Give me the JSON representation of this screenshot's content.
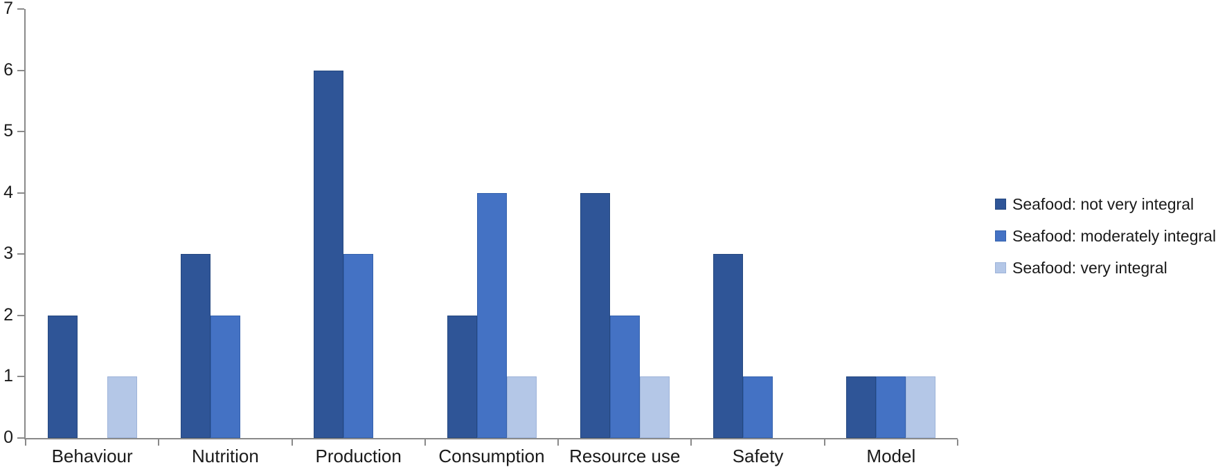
{
  "chart_data": {
    "type": "bar",
    "title": "",
    "xlabel": "",
    "ylabel": "",
    "categories": [
      "Behaviour",
      "Nutrition",
      "Production",
      "Consumption",
      "Resource use",
      "Safety",
      "Model"
    ],
    "series": [
      {
        "name": "Seafood: not very integral",
        "color": "#2F5597",
        "border_color": "#24477F",
        "values": [
          2,
          3,
          6,
          2,
          4,
          3,
          1
        ]
      },
      {
        "name": "Seafood: moderately integral",
        "color": "#4472C4",
        "border_color": "#3461AD",
        "values": [
          0,
          2,
          3,
          4,
          2,
          1,
          1
        ]
      },
      {
        "name": "Seafood: very integral",
        "color": "#B4C7E7",
        "border_color": "#9DB3D9",
        "values": [
          1,
          0,
          0,
          1,
          1,
          0,
          1
        ]
      }
    ],
    "ylim": [
      0,
      7
    ],
    "yticks": [
      "0",
      "1",
      "2",
      "3",
      "4",
      "5",
      "6",
      "7"
    ],
    "grid": false,
    "legend_position": "right",
    "axis_color": "#898989",
    "text_color": "#1a1a1a",
    "background_color": "#ffffff"
  }
}
